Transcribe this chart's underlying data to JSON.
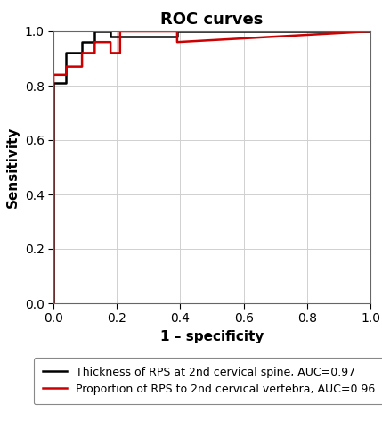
{
  "title": "ROC curves",
  "xlabel": "1 – specificity",
  "ylabel": "Sensitivity",
  "xlim": [
    0.0,
    1.0
  ],
  "ylim": [
    0.0,
    1.0
  ],
  "xticks": [
    0.0,
    0.2,
    0.4,
    0.6,
    0.8,
    1.0
  ],
  "yticks": [
    0.0,
    0.2,
    0.4,
    0.6,
    0.8,
    1.0
  ],
  "black_curve": {
    "x": [
      0.0,
      0.0,
      0.04,
      0.04,
      0.09,
      0.09,
      0.13,
      0.13,
      0.18,
      0.18,
      0.39,
      0.39,
      1.0
    ],
    "y": [
      0.0,
      0.81,
      0.81,
      0.92,
      0.92,
      0.96,
      0.96,
      1.0,
      1.0,
      0.98,
      0.98,
      1.0,
      1.0
    ],
    "color": "#000000",
    "linewidth": 1.8,
    "label": "Thickness of RPS at 2nd cervical spine, AUC=0.97"
  },
  "red_curve": {
    "x": [
      0.0,
      0.0,
      0.04,
      0.04,
      0.09,
      0.09,
      0.13,
      0.13,
      0.18,
      0.18,
      0.21,
      0.21,
      0.39,
      0.39,
      1.0
    ],
    "y": [
      0.0,
      0.84,
      0.84,
      0.87,
      0.87,
      0.92,
      0.92,
      0.96,
      0.96,
      0.92,
      0.92,
      1.0,
      1.0,
      0.96,
      1.0
    ],
    "color": "#cc0000",
    "linewidth": 1.8,
    "label": "Proportion of RPS to 2nd cervical vertebra, AUC=0.96"
  },
  "grid_color": "#d0d0d0",
  "background_color": "#ffffff",
  "title_fontsize": 13,
  "label_fontsize": 11,
  "tick_fontsize": 10,
  "legend_fontsize": 9
}
